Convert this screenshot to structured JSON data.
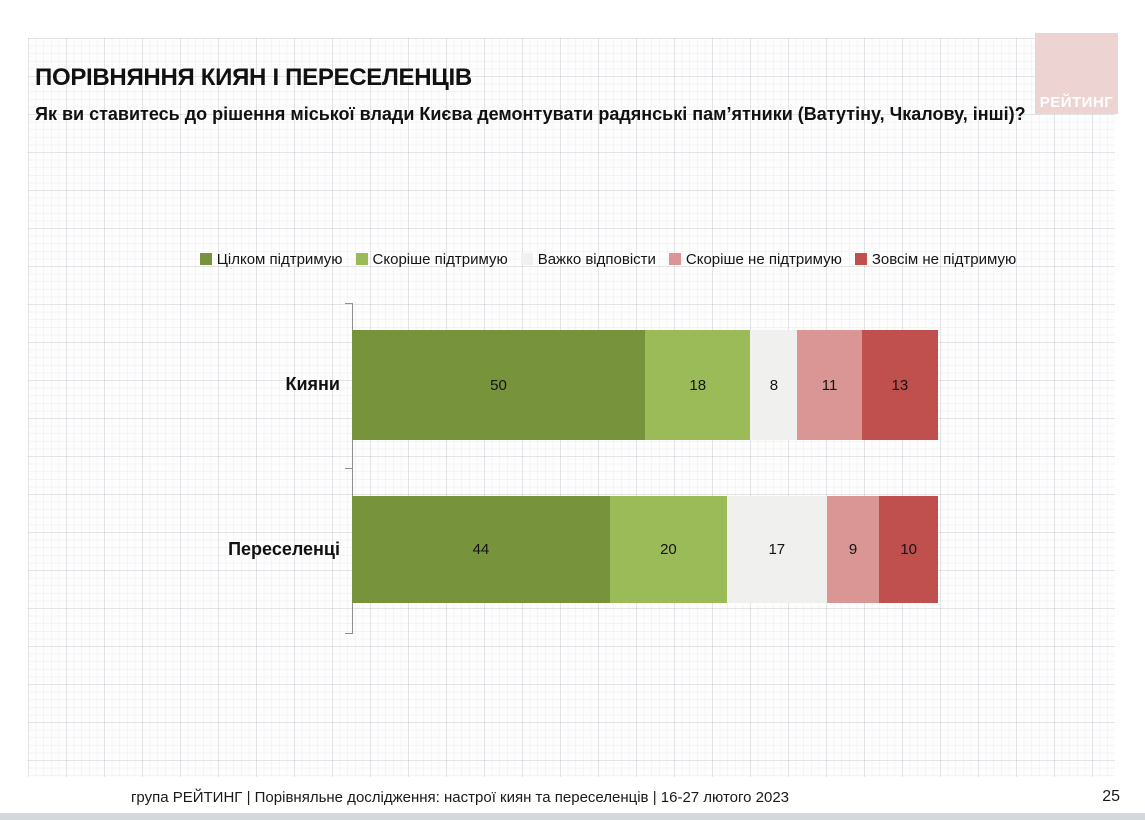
{
  "slide": {
    "title": "ПОРІВНЯННЯ КИЯН І ПЕРЕСЕЛЕНЦІВ",
    "subtitle": "Як ви ставитесь до рішення міської влади Києва демонтувати радянські пам’ятники (Ватутіну, Чкалову, інші)?",
    "logo_text": "РЕЙТИНГ",
    "logo_color": "#edd3d1",
    "footer": "група РЕЙТИНГ | Порівняльне дослідження: настрої киян та переселенців | 16-27 лютого 2023",
    "page_number": "25"
  },
  "chart_data": {
    "type": "bar",
    "orientation": "horizontal",
    "stacked": true,
    "grid": false,
    "legend_position": "top",
    "value_labels": "inside-center",
    "xlim": [
      0,
      100
    ],
    "categories": [
      "Кияни",
      "Переселенці"
    ],
    "series": [
      {
        "name": "Цілком підтримую",
        "color": "#77933c",
        "values": [
          50,
          44
        ]
      },
      {
        "name": "Скоріше підтримую",
        "color": "#9bbb59",
        "values": [
          18,
          20
        ]
      },
      {
        "name": "Важко відповісти",
        "color": "#f0f0ee",
        "values": [
          8,
          17
        ]
      },
      {
        "name": "Скоріше не підтримую",
        "color": "#d99694",
        "values": [
          11,
          9
        ]
      },
      {
        "name": "Зовсім не підтримую",
        "color": "#c0504d",
        "values": [
          13,
          10
        ]
      }
    ]
  }
}
